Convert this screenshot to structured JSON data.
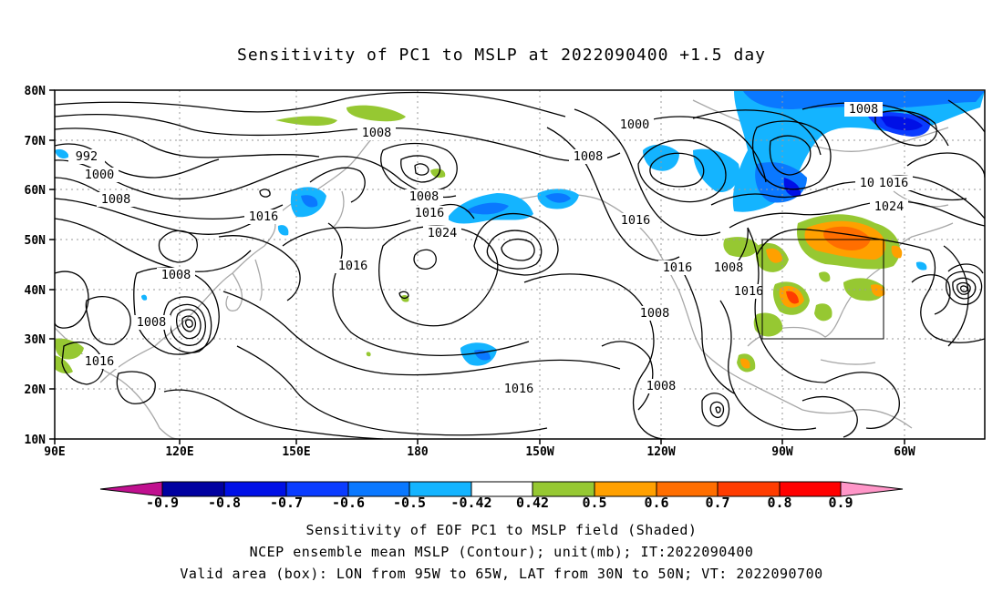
{
  "title": "Sensitivity of PC1 to MSLP at 2022090400 +1.5 day",
  "map": {
    "lat_labels": [
      "80N",
      "70N",
      "60N",
      "50N",
      "40N",
      "30N",
      "20N",
      "10N"
    ],
    "lon_labels": [
      "90E",
      "120E",
      "150E",
      "180",
      "150W",
      "120W",
      "90W",
      "60W"
    ],
    "valid_box": {
      "lon_from": "95W",
      "lon_to": "65W",
      "lat_from": "30N",
      "lat_to": "50N"
    }
  },
  "contour_labels": [
    {
      "text": "992"
    },
    {
      "text": "1000"
    },
    {
      "text": "1008"
    },
    {
      "text": "1008"
    },
    {
      "text": "1016"
    },
    {
      "text": "1008"
    },
    {
      "text": "1008"
    },
    {
      "text": "1016"
    },
    {
      "text": "1008"
    },
    {
      "text": "1016"
    },
    {
      "text": "1008"
    },
    {
      "text": "1016"
    },
    {
      "text": "1024"
    },
    {
      "text": "1016"
    },
    {
      "text": "1000"
    },
    {
      "text": "1008"
    },
    {
      "text": "1016"
    },
    {
      "text": "1016"
    },
    {
      "text": "1008"
    },
    {
      "text": "1016"
    },
    {
      "text": "1008"
    },
    {
      "text": "1008"
    },
    {
      "text": "1008"
    },
    {
      "text": "1016"
    },
    {
      "text": "1024"
    }
  ],
  "colorbar": {
    "ticks": [
      "-0.9",
      "-0.8",
      "-0.7",
      "-0.6",
      "-0.5",
      "-0.42",
      "0.42",
      "0.5",
      "0.6",
      "0.7",
      "0.8",
      "0.9"
    ],
    "colors": [
      "#c0108f",
      "#0000a0",
      "#0010e6",
      "#0a3cff",
      "#0a78ff",
      "#14b4ff",
      "#ffffff",
      "#96c832",
      "#ffa000",
      "#ff6e00",
      "#ff3c00",
      "#ff0000",
      "#ff96c8"
    ]
  },
  "footer": {
    "line1": "Sensitivity of EOF PC1 to MSLP field (Shaded)",
    "line2": "NCEP ensemble mean MSLP (Contour); unit(mb); IT:2022090400",
    "line3": "Valid area (box): LON from 95W to 65W, LAT from 30N to 50N; VT: 2022090700"
  }
}
